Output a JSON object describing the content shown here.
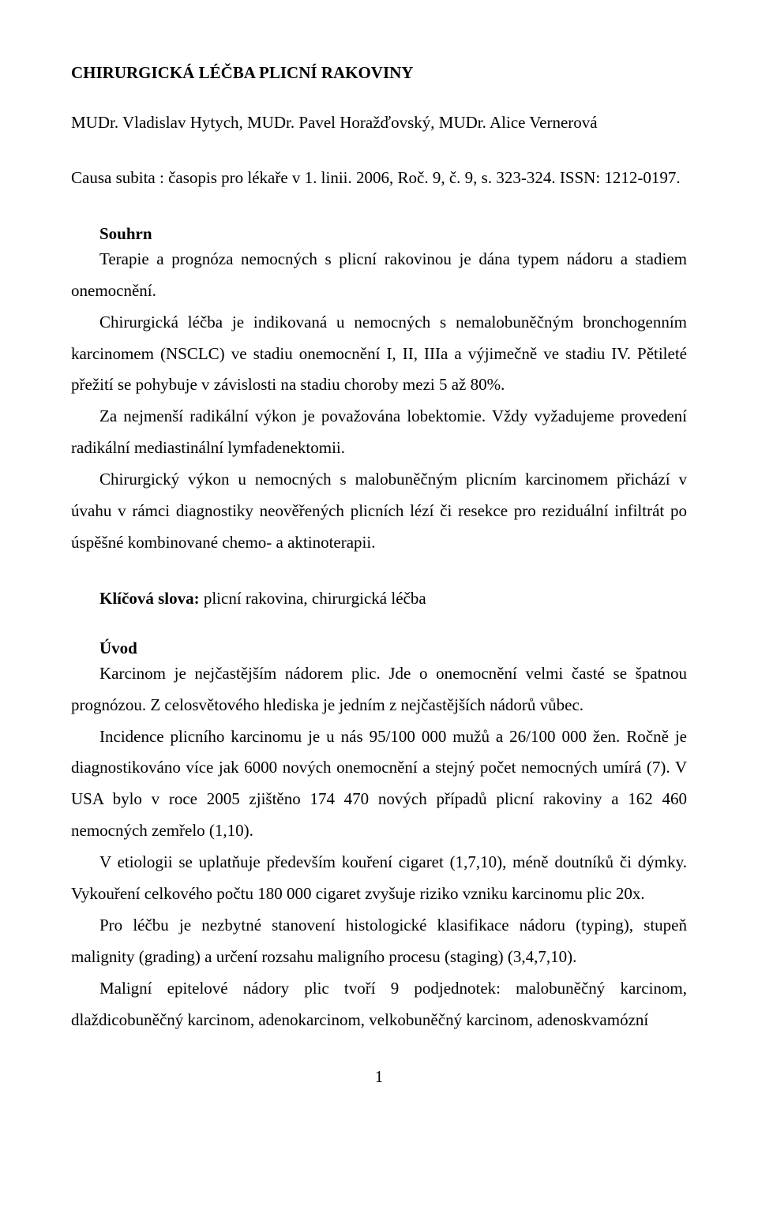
{
  "title": "CHIRURGICKÁ LÉČBA PLICNÍ RAKOVINY",
  "authors": "MUDr. Vladislav Hytych, MUDr. Pavel Horažďovský, MUDr. Alice Vernerová",
  "citation": "Causa subita : časopis pro lékaře v 1. linii. 2006, Roč. 9, č. 9, s. 323-324. ISSN: 1212-0197.",
  "souhrn": {
    "heading": "Souhrn",
    "p1": "Terapie a prognóza nemocných s plicní rakovinou je dána typem nádoru a stadiem onemocnění.",
    "p2": "Chirurgická léčba je indikovaná u nemocných s nemalobuněčným bronchogenním karcinomem (NSCLC) ve stadiu onemocnění I, II, IIIa a výjimečně ve stadiu IV. Pětileté přežití se pohybuje v závislosti na stadiu choroby mezi 5 až 80%.",
    "p3": "Za nejmenší radikální výkon je považována lobektomie. Vždy vyžadujeme provedení radikální mediastinální lymfadenektomii.",
    "p4": "Chirurgický výkon u nemocných s malobuněčným plicním karcinomem přichází v úvahu v rámci diagnostiky neověřených plicních lézí či resekce pro reziduální infiltrát po úspěšné kombinované chemo- a aktinoterapii."
  },
  "keywords": {
    "label": "Klíčová slova:",
    "text": " plicní rakovina, chirurgická léčba"
  },
  "uvod": {
    "heading": "Úvod",
    "p1": "Karcinom je nejčastějším nádorem plic. Jde o onemocnění velmi časté se špatnou prognózou. Z celosvětového hlediska je jedním z nejčastějších nádorů vůbec.",
    "p2": "Incidence plicního karcinomu je u nás 95/100 000 mužů a 26/100 000 žen. Ročně je diagnostikováno více jak 6000 nových onemocnění a stejný počet nemocných umírá (7). V  USA bylo v roce 2005 zjištěno 174 470 nových případů plicní rakoviny a 162 460 nemocných zemřelo (1,10).",
    "p3": "V etiologii se uplatňuje především kouření cigaret (1,7,10), méně doutníků či dýmky. Vykouření celkového počtu 180 000 cigaret zvyšuje riziko vzniku karcinomu plic 20x.",
    "p4": "Pro léčbu je nezbytné stanovení histologické klasifikace nádoru (typing), stupeň malignity (grading) a určení rozsahu maligního procesu (staging) (3,4,7,10).",
    "p5": "Maligní epitelové nádory plic tvoří 9 podjednotek: malobuněčný karcinom, dlaždicobuněčný karcinom, adenokarcinom, velkobuněčný karcinom, adenoskvamózní"
  },
  "page_number": "1"
}
